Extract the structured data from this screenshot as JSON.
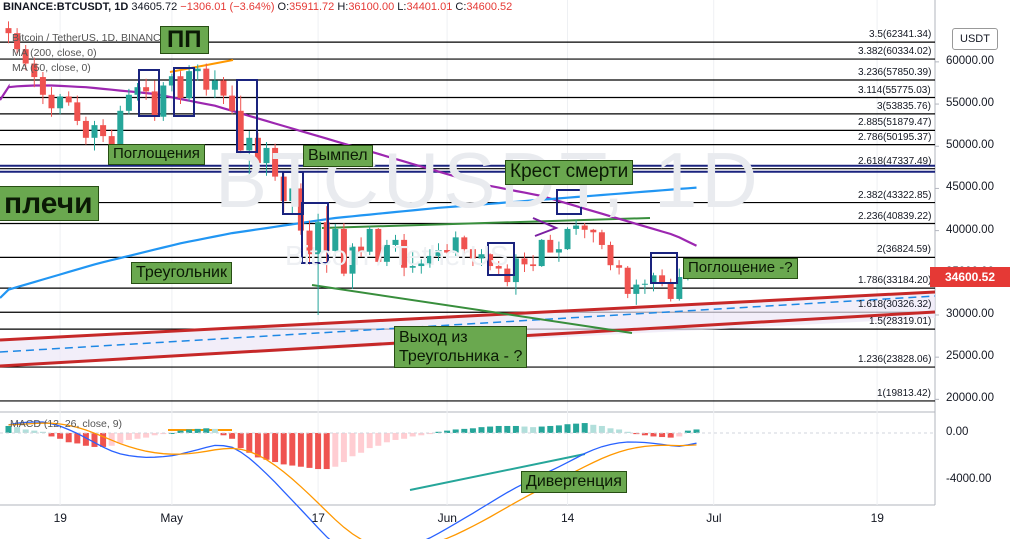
{
  "header": {
    "symbol": "BINANCE:BTCUSDT, 1D",
    "last": "34605.72",
    "change": "−1306.01 (−3.64%)",
    "open_label": "O:",
    "open": "35911.72",
    "high_label": "H:",
    "high": "36100.00",
    "low_label": "L:",
    "low": "34401.01",
    "close_label": "C:",
    "close": "34600.52",
    "subtitle": "Bitcoin / TetherUS, 1D, BINANCE",
    "ma200": "MA (200, close, 0)",
    "ma50": "MA (50, close, 0)",
    "macd": "MACD (12, 26, close, 9)"
  },
  "watermark": {
    "main": "BTCUSDT, 1D",
    "sub": "Bitcoin / TetherUS"
  },
  "currency_badge": "USDT",
  "last_price_badge": "34600.52",
  "annotations": [
    {
      "text": "ПП",
      "x": "",
      "y": ""
    },
    {
      "text": "Поглощения"
    },
    {
      "text": "Вымпел"
    },
    {
      "text": "плечи"
    },
    {
      "text": "Крест смерти"
    },
    {
      "text": "Треугольник"
    },
    {
      "text": "Поглощение -?"
    },
    {
      "text": "Выход из"
    },
    {
      "text": "Треугольника - ?"
    },
    {
      "text": "Дивергенция"
    }
  ],
  "fib_levels": [
    {
      "label": "3.5(62341.34)",
      "price": 62341.34
    },
    {
      "label": "3.382(60334.02)",
      "price": 60334.02
    },
    {
      "label": "3.236(57850.39)",
      "price": 57850.39
    },
    {
      "label": "3.114(55775.03)",
      "price": 55775.03
    },
    {
      "label": "3(53835.76)",
      "price": 53835.76
    },
    {
      "label": "2.885(51879.47)",
      "price": 51879.47
    },
    {
      "label": "2.786(50195.37)",
      "price": 50195.37
    },
    {
      "label": "2.618(47337.49)",
      "price": 47337.49
    },
    {
      "label": "2.382(43322.85)",
      "price": 43322.85
    },
    {
      "label": "2.236(40839.22)",
      "price": 40839.22
    },
    {
      "label": "2(36824.59)",
      "price": 36824.59
    },
    {
      "label": "1.786(33184.20)",
      "price": 33184.2
    },
    {
      "label": "1.618(30326.32)",
      "price": 30326.32
    },
    {
      "label": "1.5(28319.01)",
      "price": 28319.01
    },
    {
      "label": "1.236(23828.06)",
      "price": 23828.06
    },
    {
      "label": "1(19813.42)",
      "price": 19813.42
    }
  ],
  "price_axis": [
    "60000.00",
    "55000.00",
    "50000.00",
    "45000.00",
    "40000.00",
    "35000.00",
    "30000.00",
    "25000.00",
    "20000.00"
  ],
  "macd_axis": [
    "0.00",
    "-4000.00"
  ],
  "time_axis": [
    "19",
    "May",
    "17",
    "Jun",
    "14",
    "Jul",
    "19"
  ],
  "chart_data": {
    "type": "candlestick",
    "series": [
      {
        "name": "BTCUSDT",
        "values": [
          [
            64000,
            64800,
            62200,
            63400
          ],
          [
            63400,
            64000,
            61000,
            61500
          ],
          [
            61500,
            62000,
            59000,
            59800
          ],
          [
            59800,
            60500,
            57000,
            58200
          ],
          [
            58200,
            58800,
            55000,
            56100
          ],
          [
            56100,
            57000,
            53500,
            54500
          ],
          [
            54500,
            56200,
            53800,
            55900
          ],
          [
            55900,
            56500,
            54800,
            55200
          ],
          [
            55200,
            56000,
            52500,
            53000
          ],
          [
            53000,
            53500,
            50200,
            51000
          ],
          [
            51000,
            53000,
            49500,
            52500
          ],
          [
            52500,
            53200,
            50500,
            51200
          ],
          [
            51200,
            52000,
            48500,
            49800
          ],
          [
            49800,
            54800,
            49500,
            54200
          ],
          [
            54200,
            56800,
            53800,
            56100
          ],
          [
            56100,
            57500,
            55400,
            57000
          ],
          [
            57000,
            58000,
            55500,
            56500
          ],
          [
            56500,
            57800,
            53000,
            53500
          ],
          [
            53500,
            57600,
            53000,
            57200
          ],
          [
            57200,
            58600,
            56500,
            58300
          ],
          [
            58300,
            58900,
            55000,
            55700
          ],
          [
            55700,
            59600,
            55300,
            58900
          ],
          [
            58900,
            59700,
            57800,
            59200
          ],
          [
            59200,
            59800,
            56000,
            56700
          ],
          [
            56700,
            59000,
            55700,
            57800
          ],
          [
            57800,
            58200,
            55000,
            56000
          ],
          [
            56000,
            57200,
            53800,
            54200
          ],
          [
            54200,
            56000,
            48500,
            49500
          ],
          [
            49500,
            51800,
            46200,
            51000
          ],
          [
            51000,
            51600,
            47500,
            48000
          ],
          [
            48000,
            50500,
            46500,
            49800
          ],
          [
            49800,
            50300,
            45900,
            46400
          ],
          [
            46400,
            46900,
            42200,
            43500
          ],
          [
            43500,
            45800,
            41900,
            45000
          ],
          [
            45000,
            45600,
            39500,
            40000
          ],
          [
            40000,
            41200,
            36000,
            37200
          ],
          [
            37200,
            42000,
            30000,
            41000
          ],
          [
            41000,
            42900,
            35000,
            37600
          ],
          [
            37600,
            40800,
            37000,
            40200
          ],
          [
            40200,
            40900,
            34600,
            34900
          ],
          [
            34900,
            38500,
            33100,
            38100
          ],
          [
            38100,
            39200,
            36900,
            37500
          ],
          [
            37500,
            40500,
            37100,
            40200
          ],
          [
            40200,
            40300,
            35900,
            36300
          ],
          [
            36300,
            38900,
            35800,
            38300
          ],
          [
            38300,
            39500,
            37500,
            38900
          ],
          [
            38900,
            39600,
            34600,
            35600
          ],
          [
            35600,
            37600,
            35000,
            35800
          ],
          [
            35800,
            36600,
            34900,
            36100
          ],
          [
            36100,
            37800,
            35600,
            37000
          ],
          [
            37000,
            38500,
            36400,
            37700
          ],
          [
            37700,
            38400,
            36500,
            37400
          ],
          [
            37400,
            39900,
            37000,
            39200
          ],
          [
            39200,
            39400,
            37200,
            37800
          ],
          [
            37800,
            38000,
            35800,
            36700
          ],
          [
            36700,
            37800,
            35800,
            37200
          ],
          [
            37200,
            37300,
            35300,
            35800
          ],
          [
            35800,
            36400,
            34700,
            35500
          ],
          [
            35500,
            36000,
            33400,
            33900
          ],
          [
            33900,
            37200,
            32400,
            36700
          ],
          [
            36700,
            37400,
            35100,
            36000
          ],
          [
            36000,
            37100,
            35200,
            35800
          ],
          [
            35800,
            39000,
            35700,
            38900
          ],
          [
            38900,
            39500,
            37400,
            37400
          ],
          [
            37400,
            38700,
            36300,
            37800
          ],
          [
            37800,
            40400,
            37700,
            40200
          ],
          [
            40200,
            41300,
            39500,
            40600
          ],
          [
            40600,
            40900,
            39100,
            40100
          ],
          [
            40100,
            40200,
            38600,
            39800
          ],
          [
            39800,
            40100,
            37800,
            38300
          ],
          [
            38300,
            38700,
            35300,
            35900
          ],
          [
            35900,
            36500,
            34800,
            35600
          ],
          [
            35600,
            35800,
            32000,
            32500
          ],
          [
            32500,
            34200,
            31200,
            33600
          ],
          [
            33600,
            34200,
            32500,
            33700
          ],
          [
            33700,
            35000,
            32800,
            34700
          ],
          [
            34700,
            35400,
            33400,
            33700
          ],
          [
            33700,
            34300,
            31600,
            31900
          ],
          [
            31900,
            35500,
            31700,
            34500
          ],
          [
            34500,
            36700,
            34100,
            35900
          ],
          [
            35900,
            36100,
            34400,
            34600
          ]
        ]
      }
    ],
    "ylim": [
      18500,
      65200
    ],
    "macd_ylim": [
      -5500,
      1800
    ],
    "macd_hist": [
      600,
      500,
      300,
      200,
      100,
      -300,
      -500,
      -800,
      -900,
      -1100,
      -1200,
      -1200,
      -1100,
      -900,
      -600,
      -500,
      -400,
      -200,
      -100,
      0,
      200,
      300,
      350,
      400,
      350,
      -200,
      -500,
      -1300,
      -1700,
      -2100,
      -2300,
      -2500,
      -2700,
      -2800,
      -2900,
      -3000,
      -3100,
      -3100,
      -2900,
      -2500,
      -2000,
      -1700,
      -1300,
      -1100,
      -800,
      -600,
      -500,
      -300,
      -200,
      -100,
      100,
      200,
      300,
      350,
      400,
      500,
      550,
      600,
      600,
      600,
      550,
      500,
      550,
      600,
      650,
      750,
      800,
      850,
      700,
      600,
      400,
      300,
      100,
      -100,
      -200,
      -300,
      -350,
      -400,
      -300,
      200,
      300
    ],
    "ma50": [
      57000,
      57100,
      57150,
      57200,
      57200,
      57200,
      57150,
      57100,
      57050,
      57000,
      56900,
      56800,
      56700,
      56600,
      56500,
      56400,
      56300,
      56200,
      56000,
      55800,
      55600,
      55400,
      55200,
      55000,
      54800,
      54500,
      54200,
      53900,
      53600,
      53300,
      53000,
      52700,
      52400,
      52100,
      51800,
      51500,
      51200,
      50900,
      50600,
      50300,
      50000,
      49700,
      49400,
      49100,
      48800,
      48500,
      48200,
      47900,
      47600,
      47300,
      47000,
      46700,
      46400,
      46100,
      45800,
      45500,
      45300,
      45100,
      44900,
      44700,
      44500,
      44300,
      44100,
      43800,
      43500,
      43200,
      42900,
      42600,
      42300,
      42000,
      41700,
      41400,
      41100,
      40800,
      40500,
      40200,
      39900,
      39600,
      39200,
      38700,
      38200
    ],
    "ma200": [
      33000,
      33300,
      33600,
      33900,
      34200,
      34500,
      34800,
      35100,
      35400,
      35700,
      36000,
      36250,
      36500,
      36750,
      37000,
      37250,
      37500,
      37750,
      38000,
      38250,
      38500,
      38700,
      38900,
      39100,
      39300,
      39500,
      39700,
      39850,
      40000,
      40150,
      40300,
      40450,
      40600,
      40750,
      40900,
      41050,
      41200,
      41350,
      41500,
      41600,
      41700,
      41800,
      41900,
      42000,
      42100,
      42200,
      42300,
      42400,
      42500,
      42600,
      42700,
      42780,
      42860,
      42940,
      43020,
      43100,
      43180,
      43260,
      43340,
      43420,
      43500,
      43580,
      43660,
      43740,
      43820,
      43900,
      43980,
      44060,
      44140,
      44220,
      44300,
      44380,
      44460,
      44540,
      44620,
      44700,
      44780,
      44860,
      44940,
      45020,
      45100
    ],
    "x_ticks": [
      {
        "label": "19",
        "i": 6
      },
      {
        "label": "May",
        "i": 19
      },
      {
        "label": "17",
        "i": 36
      },
      {
        "label": "Jun",
        "i": 51
      },
      {
        "label": "14",
        "i": 65
      },
      {
        "label": "Jul",
        "i": 82
      },
      {
        "label": "19",
        "i": 101
      }
    ],
    "colors": {
      "up": "#26a69a",
      "down": "#ef5350",
      "ma50": "#9c27b0",
      "ma200": "#2196f3",
      "macd_line": "#2962ff",
      "signal": "#ff9800"
    }
  }
}
